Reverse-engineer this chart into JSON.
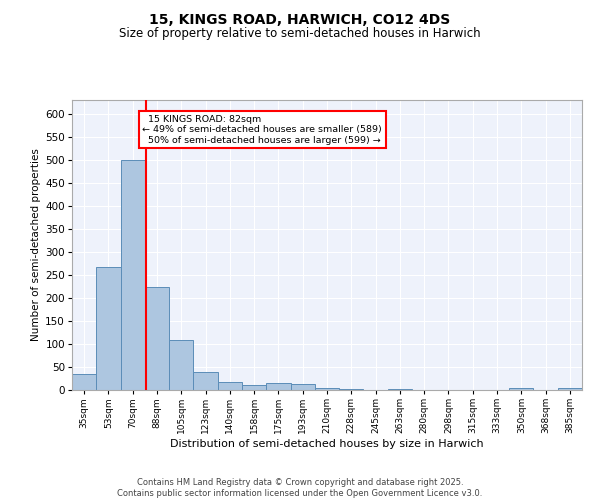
{
  "title_line1": "15, KINGS ROAD, HARWICH, CO12 4DS",
  "title_line2": "Size of property relative to semi-detached houses in Harwich",
  "xlabel": "Distribution of semi-detached houses by size in Harwich",
  "ylabel": "Number of semi-detached properties",
  "categories": [
    "35sqm",
    "53sqm",
    "70sqm",
    "88sqm",
    "105sqm",
    "123sqm",
    "140sqm",
    "158sqm",
    "175sqm",
    "193sqm",
    "210sqm",
    "228sqm",
    "245sqm",
    "263sqm",
    "280sqm",
    "298sqm",
    "315sqm",
    "333sqm",
    "350sqm",
    "368sqm",
    "385sqm"
  ],
  "values": [
    35,
    268,
    499,
    224,
    109,
    40,
    18,
    10,
    16,
    12,
    5,
    2,
    0,
    3,
    0,
    0,
    0,
    0,
    4,
    0,
    4
  ],
  "bar_color": "#adc6e0",
  "bar_edge_color": "#5b8db8",
  "vline_color": "red",
  "vline_x_index": 2.55,
  "property_label": "15 KINGS ROAD: 82sqm",
  "pct_smaller": 49,
  "n_smaller": 589,
  "pct_larger": 50,
  "n_larger": 599,
  "ylim": [
    0,
    630
  ],
  "yticks": [
    0,
    50,
    100,
    150,
    200,
    250,
    300,
    350,
    400,
    450,
    500,
    550,
    600
  ],
  "footnote": "Contains HM Land Registry data © Crown copyright and database right 2025.\nContains public sector information licensed under the Open Government Licence v3.0.",
  "bg_color": "#eef2fb",
  "grid_color": "#ffffff"
}
